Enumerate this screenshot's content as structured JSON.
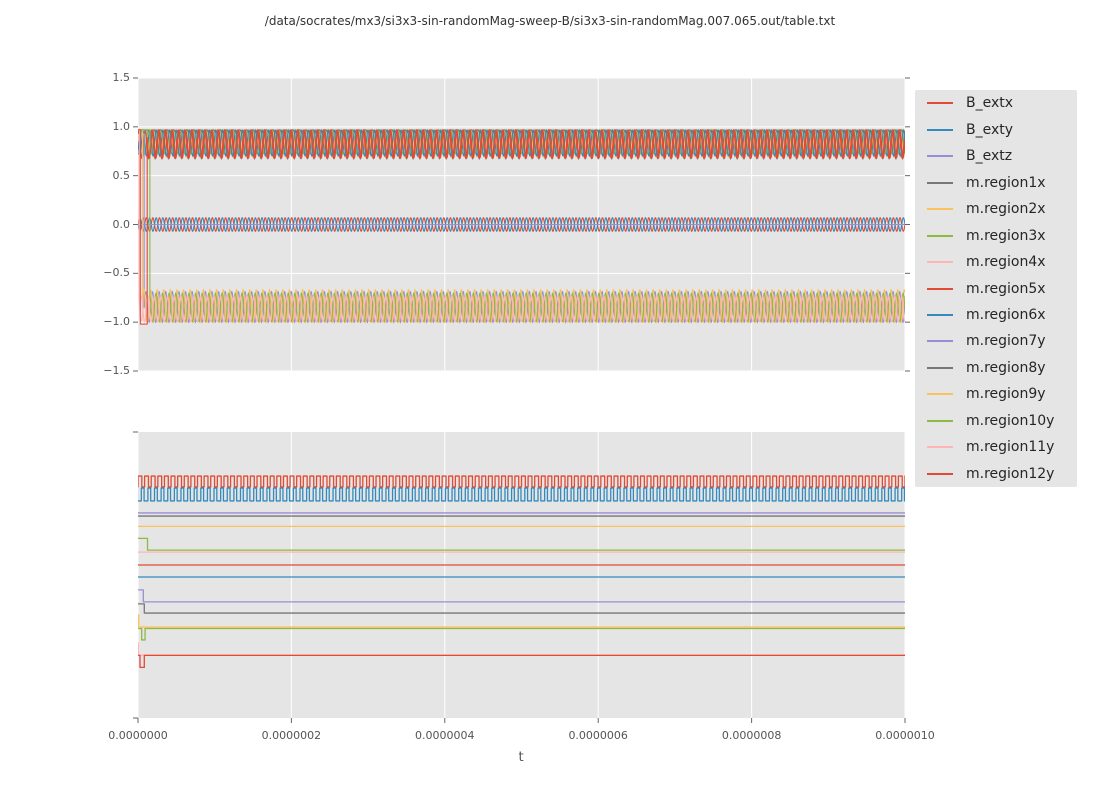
{
  "figure": {
    "title": "/data/socrates/mx3/si3x3-sin-randomMag-sweep-B/si3x3-sin-randomMag.007.065.out/table.txt"
  },
  "colors": {
    "figure_bg": "#ffffff",
    "axes_bg": "#e5e5e5",
    "grid": "#ffffff",
    "tick": "#666666",
    "tick_label": "#555555",
    "red": "#e24a33",
    "blue": "#348abd",
    "purple": "#988ed5",
    "gray": "#777777",
    "orange": "#fbc15e",
    "green": "#8eba42",
    "pink": "#ffb5b8"
  },
  "xaxis": {
    "label": "t",
    "ticks": [
      {
        "u": 0.0,
        "label": "0.0000000"
      },
      {
        "u": 0.2,
        "label": "0.0000002"
      },
      {
        "u": 0.4,
        "label": "0.0000004"
      },
      {
        "u": 0.6,
        "label": "0.0000006"
      },
      {
        "u": 0.8,
        "label": "0.0000008"
      },
      {
        "u": 1.0,
        "label": "0.0000010"
      }
    ]
  },
  "legend": {
    "entries": [
      {
        "label": "B_extx",
        "color": "#e24a33"
      },
      {
        "label": "B_exty",
        "color": "#348abd"
      },
      {
        "label": "B_extz",
        "color": "#988ed5"
      },
      {
        "label": "m.region1x",
        "color": "#777777"
      },
      {
        "label": "m.region2x",
        "color": "#fbc15e"
      },
      {
        "label": "m.region3x",
        "color": "#8eba42"
      },
      {
        "label": "m.region4x",
        "color": "#ffb5b8"
      },
      {
        "label": "m.region5x",
        "color": "#e24a33"
      },
      {
        "label": "m.region6x",
        "color": "#348abd"
      },
      {
        "label": "m.region7y",
        "color": "#988ed5"
      },
      {
        "label": "m.region8y",
        "color": "#777777"
      },
      {
        "label": "m.region9y",
        "color": "#fbc15e"
      },
      {
        "label": "m.region10y",
        "color": "#8eba42"
      },
      {
        "label": "m.region11y",
        "color": "#ffb5b8"
      },
      {
        "label": "m.region12y",
        "color": "#e24a33"
      }
    ]
  },
  "chart_data": [
    {
      "type": "line",
      "position": "top",
      "xlim_seconds": [
        0,
        1e-06
      ],
      "ylim": [
        -1.5,
        1.5
      ],
      "yticks": [
        {
          "v": 1.5,
          "label": "1.5"
        },
        {
          "v": 1.0,
          "label": "1.0"
        },
        {
          "v": 0.5,
          "label": "0.5"
        },
        {
          "v": 0.0,
          "label": "0.0"
        },
        {
          "v": -0.5,
          "label": "−0.5"
        },
        {
          "v": -1.0,
          "label": "−1.0"
        },
        {
          "v": -1.5,
          "label": "−1.5"
        }
      ],
      "grid_h": true,
      "left_ticks": "all",
      "right_ticks": true,
      "bottom_ticks": false,
      "stroke_width": 1.1,
      "series": [
        {
          "name": "B_extx",
          "color": "#e24a33",
          "segments": [
            {
              "type": "sine",
              "u0": 0,
              "u1": 1,
              "center": 0,
              "amp": 0.07,
              "cycles": 116,
              "phase": 0.0
            }
          ]
        },
        {
          "name": "B_exty",
          "color": "#348abd",
          "segments": [
            {
              "type": "sine",
              "u0": 0,
              "u1": 1,
              "center": 0,
              "amp": 0.07,
              "cycles": 116,
              "phase": 3.1
            }
          ]
        },
        {
          "name": "B_extz",
          "color": "#988ed5",
          "segments": [
            {
              "type": "flat",
              "u0": 0,
              "u1": 1,
              "v": 0.0
            }
          ]
        },
        {
          "name": "m.region1x",
          "color": "#777777",
          "segments": [
            {
              "type": "sine",
              "u0": 0,
              "u1": 1,
              "center": 0.82,
              "amp": 0.15,
              "cycles": 116,
              "phase": 0.8
            }
          ]
        },
        {
          "name": "m.region2x",
          "color": "#fbc15e",
          "segments": [
            {
              "type": "sine",
              "u0": 0,
              "u1": 1,
              "center": 0.83,
              "amp": 0.14,
              "cycles": 116,
              "phase": 2.6
            }
          ]
        },
        {
          "name": "m.region3x",
          "color": "#8eba42",
          "segments": [
            {
              "type": "sine",
              "u0": 0,
              "u1": 1,
              "center": 0.845,
              "amp": 0.125,
              "cycles": 116,
              "phase": 4.4
            }
          ]
        },
        {
          "name": "m.region4x",
          "color": "#ffb5b8",
          "segments": [
            {
              "type": "flat",
              "u0": 0,
              "u1": 0.0013,
              "v": 0.97
            },
            {
              "type": "sine",
              "u0": 0.0013,
              "u1": 1,
              "center": -0.86,
              "amp": 0.13,
              "cycles": 116,
              "phase": 1.5
            }
          ]
        },
        {
          "name": "m.region5x",
          "color": "#e24a33",
          "segments": [
            {
              "type": "sine",
              "u0": 0,
              "u1": 1,
              "center": 0.825,
              "amp": 0.145,
              "cycles": 116,
              "phase": 1.2
            }
          ]
        },
        {
          "name": "m.region6x",
          "color": "#348abd",
          "segments": [
            {
              "type": "sine",
              "u0": 0,
              "u1": 1,
              "center": 0.835,
              "amp": 0.135,
              "cycles": 116,
              "phase": 3.0
            }
          ]
        },
        {
          "name": "m.region7y",
          "color": "#988ed5",
          "segments": [
            {
              "type": "flat",
              "u0": 0,
              "u1": 0.008,
              "v": 0.97
            },
            {
              "type": "sine",
              "u0": 0.008,
              "u1": 1,
              "center": -0.845,
              "amp": 0.16,
              "cycles": 116,
              "phase": 0.4
            }
          ]
        },
        {
          "name": "m.region8y",
          "color": "#777777",
          "segments": [
            {
              "type": "sine",
              "u0": 0,
              "u1": 1,
              "center": 0.955,
              "amp": 0.015,
              "cycles": 116,
              "phase": 5.5
            }
          ]
        },
        {
          "name": "m.region9y",
          "color": "#fbc15e",
          "segments": [
            {
              "type": "flat",
              "u0": 0,
              "u1": 0.006,
              "v": 0.97
            },
            {
              "type": "sine",
              "u0": 0.006,
              "u1": 1,
              "center": -0.835,
              "amp": 0.17,
              "cycles": 116,
              "phase": 2.2
            }
          ]
        },
        {
          "name": "m.region10y",
          "color": "#8eba42",
          "segments": [
            {
              "type": "flat",
              "u0": 0,
              "u1": 0.0155,
              "v": 0.97
            },
            {
              "type": "sine",
              "u0": 0.0155,
              "u1": 1,
              "center": -0.85,
              "amp": 0.15,
              "cycles": 116,
              "phase": 3.3
            }
          ]
        },
        {
          "name": "m.region11y",
          "color": "#ffb5b8",
          "segments": [
            {
              "type": "flat",
              "u0": 0,
              "u1": 0.002,
              "v": 0.97
            },
            {
              "type": "sine",
              "u0": 0.002,
              "u1": 1,
              "center": -0.865,
              "amp": 0.135,
              "cycles": 116,
              "phase": 4.8
            }
          ]
        },
        {
          "name": "m.region12y",
          "color": "#e24a33",
          "segments": [
            {
              "type": "flat",
              "u0": 0,
              "u1": 0.003,
              "v": 0.97
            },
            {
              "type": "flat",
              "u0": 0.003,
              "u1": 0.012,
              "v": -1.02
            },
            {
              "type": "sine",
              "u0": 0.012,
              "u1": 1,
              "center": 0.825,
              "amp": 0.145,
              "cycles": 116,
              "phase": 0.2
            }
          ]
        }
      ]
    },
    {
      "type": "line",
      "position": "bottom",
      "xlim_seconds": [
        0,
        1e-06
      ],
      "ylim": [
        0,
        1
      ],
      "yticks": [],
      "grid_h": false,
      "left_ticks": "edges",
      "right_ticks": false,
      "bottom_ticks": true,
      "stroke_width": 1.3,
      "series": [
        {
          "name": "B_extx",
          "color": "#e24a33",
          "segments": [
            {
              "type": "square",
              "u0": 0,
              "u1": 1,
              "hi": 0.846,
              "lo": 0.808,
              "cycles": 116,
              "duty": 0.58,
              "phase": 0.0
            }
          ]
        },
        {
          "name": "B_exty",
          "color": "#348abd",
          "segments": [
            {
              "type": "square",
              "u0": 0,
              "u1": 1,
              "hi": 0.804,
              "lo": 0.759,
              "cycles": 116,
              "duty": 0.42,
              "phase": 0.5
            }
          ]
        },
        {
          "name": "B_extz",
          "color": "#988ed5",
          "segments": [
            {
              "type": "flat",
              "u0": 0,
              "u1": 1,
              "v": 0.717
            }
          ]
        },
        {
          "name": "m.region1x",
          "color": "#777777",
          "segments": [
            {
              "type": "flat",
              "u0": 0,
              "u1": 1,
              "v": 0.706
            }
          ]
        },
        {
          "name": "m.region2x",
          "color": "#fbc15e",
          "segments": [
            {
              "type": "flat",
              "u0": 0,
              "u1": 1,
              "v": 0.67
            }
          ]
        },
        {
          "name": "m.region3x",
          "color": "#8eba42",
          "segments": [
            {
              "type": "flat",
              "u0": 0,
              "u1": 0.0124,
              "v": 0.628
            },
            {
              "type": "flat",
              "u0": 0.0124,
              "u1": 1,
              "v": 0.587
            }
          ]
        },
        {
          "name": "m.region4x",
          "color": "#ffb5b8",
          "segments": [
            {
              "type": "flat",
              "u0": 0,
              "u1": 1,
              "v": 0.58
            }
          ]
        },
        {
          "name": "m.region5x",
          "color": "#e24a33",
          "segments": [
            {
              "type": "flat",
              "u0": 0,
              "u1": 1,
              "v": 0.535
            }
          ]
        },
        {
          "name": "m.region6x",
          "color": "#348abd",
          "segments": [
            {
              "type": "flat",
              "u0": 0,
              "u1": 1,
              "v": 0.493
            }
          ]
        },
        {
          "name": "m.region7y",
          "color": "#988ed5",
          "segments": [
            {
              "type": "flat",
              "u0": 0,
              "u1": 0.0069,
              "v": 0.448
            },
            {
              "type": "flat",
              "u0": 0.0069,
              "u1": 1,
              "v": 0.406
            }
          ]
        },
        {
          "name": "m.region8y",
          "color": "#777777",
          "segments": [
            {
              "type": "flat",
              "u0": 0,
              "u1": 0.0082,
              "v": 0.399
            },
            {
              "type": "flat",
              "u0": 0.0082,
              "u1": 1,
              "v": 0.367
            }
          ]
        },
        {
          "name": "m.region9y",
          "color": "#fbc15e",
          "segments": [
            {
              "type": "flat",
              "u0": 0,
              "u1": 0.0009,
              "v": 0.36
            },
            {
              "type": "flat",
              "u0": 0.0009,
              "u1": 1,
              "v": 0.318
            }
          ]
        },
        {
          "name": "m.region10y",
          "color": "#8eba42",
          "segments": [
            {
              "type": "flat",
              "u0": 0,
              "u1": 0.0048,
              "v": 0.313
            },
            {
              "type": "flat",
              "u0": 0.0048,
              "u1": 0.0092,
              "v": 0.273
            },
            {
              "type": "flat",
              "u0": 0.0092,
              "u1": 1,
              "v": 0.313
            }
          ]
        },
        {
          "name": "m.region11y",
          "color": "#ffb5b8",
          "segments": [
            {
              "type": "flat",
              "u0": 0,
              "u1": 0.0004,
              "v": 0.262
            },
            {
              "type": "flat",
              "u0": 0.0004,
              "u1": 1,
              "v": 0.22
            }
          ]
        },
        {
          "name": "m.region12y",
          "color": "#e24a33",
          "segments": [
            {
              "type": "flat",
              "u0": 0,
              "u1": 0.0026,
              "v": 0.219
            },
            {
              "type": "flat",
              "u0": 0.0026,
              "u1": 0.0082,
              "v": 0.177
            },
            {
              "type": "flat",
              "u0": 0.0082,
              "u1": 1,
              "v": 0.219
            }
          ]
        }
      ]
    }
  ]
}
